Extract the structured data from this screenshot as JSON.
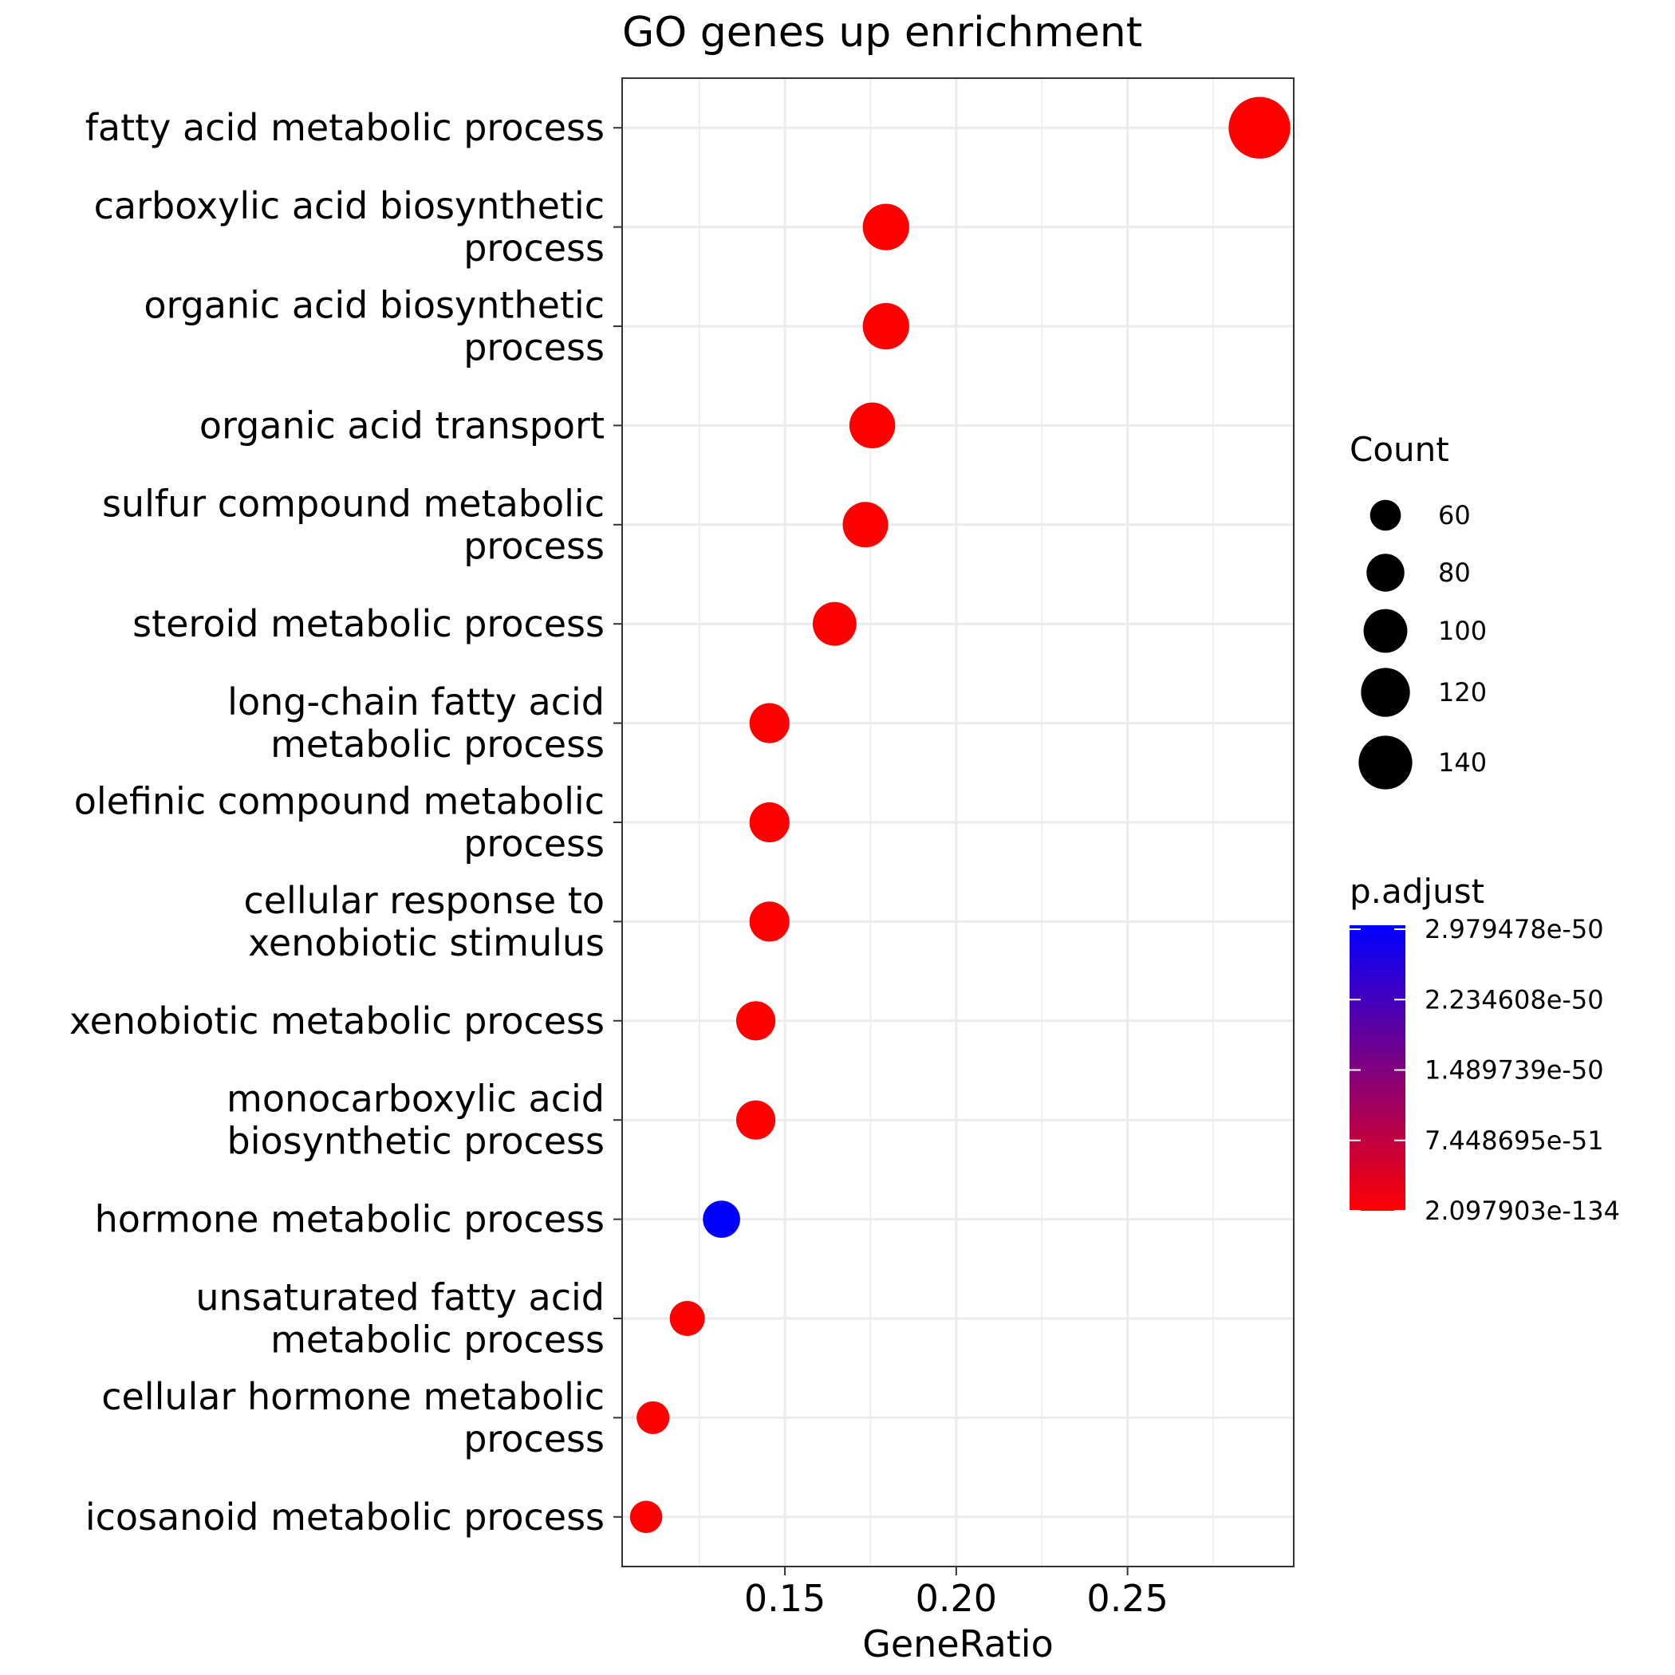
{
  "chart_data": {
    "type": "scatter",
    "title": "GO genes up enrichment",
    "xlabel": "GeneRatio",
    "ylabel": "",
    "x_ticks": [
      0.15,
      0.2,
      0.25
    ],
    "x_tick_labels": [
      "0.15",
      "0.20",
      "0.25"
    ],
    "xlim": [
      0.1025,
      0.2985
    ],
    "grid": true,
    "points": [
      {
        "label": "fatty acid metabolic process",
        "x": 0.2885,
        "count": 143,
        "p_adjust": 2.097903e-134
      },
      {
        "label": "carboxylic acid biosynthetic process",
        "x": 0.1795,
        "count": 90,
        "p_adjust": 2.097903e-134
      },
      {
        "label": "organic acid biosynthetic process",
        "x": 0.1795,
        "count": 90,
        "p_adjust": 2.097903e-134
      },
      {
        "label": "organic acid transport",
        "x": 0.1755,
        "count": 88,
        "p_adjust": 2.097903e-134
      },
      {
        "label": "sulfur compound metabolic process",
        "x": 0.1735,
        "count": 87,
        "p_adjust": 2.097903e-134
      },
      {
        "label": "steroid metabolic process",
        "x": 0.1645,
        "count": 82,
        "p_adjust": 2.097903e-134
      },
      {
        "label": "long-chain fatty acid metabolic process",
        "x": 0.1455,
        "count": 72,
        "p_adjust": 2.097903e-134
      },
      {
        "label": "olefinic compound metabolic process",
        "x": 0.1455,
        "count": 72,
        "p_adjust": 2.097903e-134
      },
      {
        "label": "cellular response to xenobiotic stimulus",
        "x": 0.1455,
        "count": 72,
        "p_adjust": 2.097903e-134
      },
      {
        "label": "xenobiotic metabolic process",
        "x": 0.1415,
        "count": 70,
        "p_adjust": 2.097903e-134
      },
      {
        "label": "monocarboxylic acid biosynthetic process",
        "x": 0.1415,
        "count": 70,
        "p_adjust": 2.097903e-134
      },
      {
        "label": "hormone metabolic process",
        "x": 0.1315,
        "count": 65,
        "p_adjust": 2.979478e-50
      },
      {
        "label": "unsaturated fatty acid metabolic process",
        "x": 0.1215,
        "count": 60,
        "p_adjust": 2.097903e-134
      },
      {
        "label": "cellular hormone metabolic process",
        "x": 0.1115,
        "count": 55,
        "p_adjust": 2.097903e-134
      },
      {
        "label": "icosanoid metabolic process",
        "x": 0.1095,
        "count": 54,
        "p_adjust": 2.097903e-134
      }
    ],
    "y_tick_lines": [
      [
        "fatty acid metabolic process"
      ],
      [
        "carboxylic acid biosynthetic",
        "process"
      ],
      [
        "organic acid biosynthetic",
        "process"
      ],
      [
        "organic acid transport"
      ],
      [
        "sulfur compound metabolic",
        "process"
      ],
      [
        "steroid metabolic process"
      ],
      [
        "long-chain fatty acid",
        "metabolic process"
      ],
      [
        "olefinic compound metabolic",
        "process"
      ],
      [
        "cellular response to",
        "xenobiotic stimulus"
      ],
      [
        "xenobiotic metabolic process"
      ],
      [
        "monocarboxylic acid",
        "biosynthetic process"
      ],
      [
        "hormone metabolic process"
      ],
      [
        "unsaturated fatty acid",
        "metabolic process"
      ],
      [
        "cellular hormone metabolic",
        "process"
      ],
      [
        "icosanoid metabolic process"
      ]
    ],
    "size_legend": {
      "title": "Count",
      "values": [
        60,
        80,
        100,
        120,
        140
      ],
      "labels": [
        "60",
        "80",
        "100",
        "120",
        "140"
      ]
    },
    "color_legend": {
      "title": "p.adjust",
      "labels": [
        "2.979478e-50",
        "2.234608e-50",
        "1.489739e-50",
        "7.448695e-51",
        "2.097903e-134"
      ],
      "high_color": "#0000FF",
      "low_color": "#FF0000"
    },
    "colors": {
      "low": "#FF0000",
      "high": "#0000FF",
      "grid": "#EBEBEB",
      "panel_border": "#333333"
    }
  }
}
